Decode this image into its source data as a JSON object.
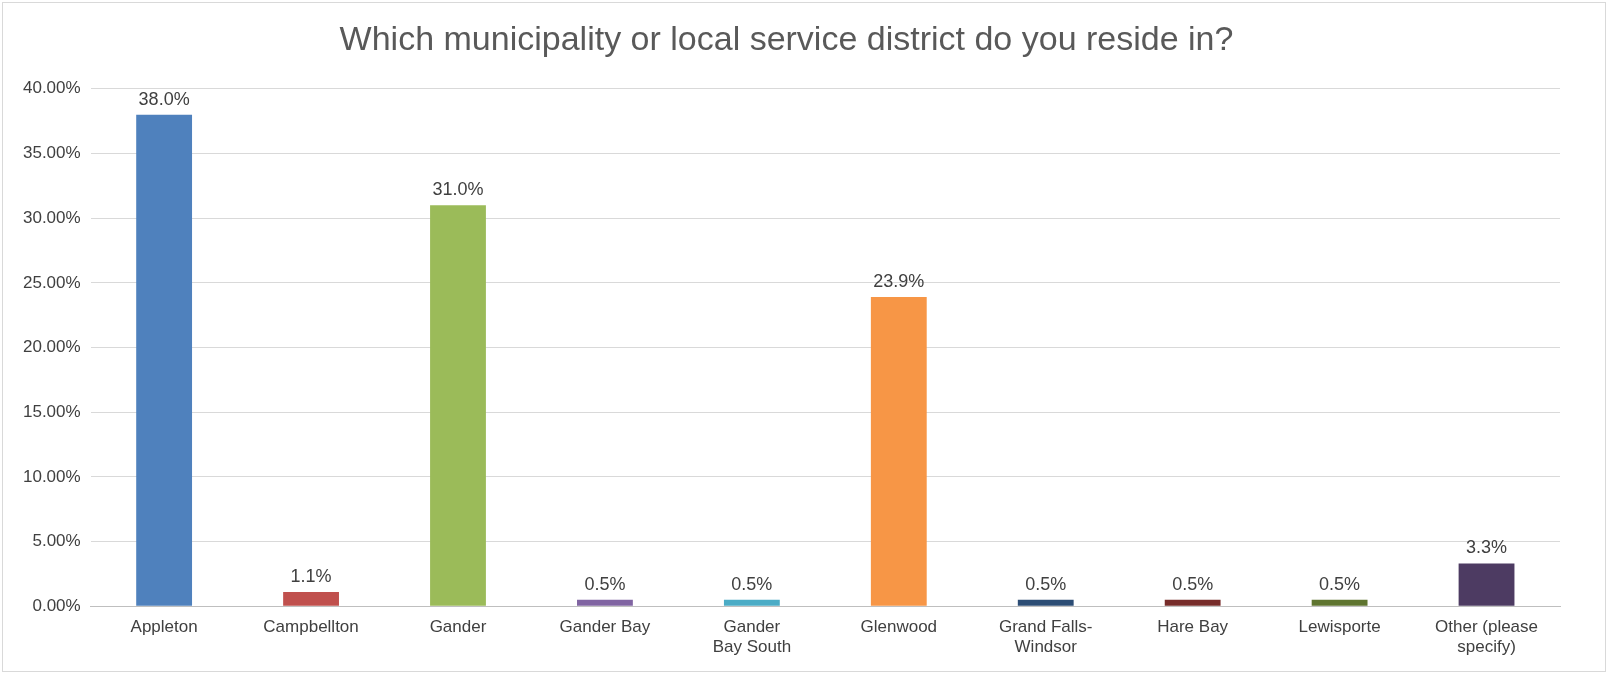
{
  "chart_data": {
    "type": "bar",
    "title": "Which municipality or local service district do you reside in?",
    "categories": [
      "Appleton",
      "Campbellton",
      "Gander",
      "Gander Bay",
      "Gander Bay South",
      "Glenwood",
      "Grand Falls-Windsor",
      "Hare Bay",
      "Lewisporte",
      "Other (please specify)"
    ],
    "values": [
      38.0,
      1.1,
      31.0,
      0.5,
      0.5,
      23.9,
      0.5,
      0.5,
      0.5,
      3.3
    ],
    "colors": [
      "#4f81bd",
      "#c0504d",
      "#9bbb59",
      "#8064a2",
      "#4bacc6",
      "#f79646",
      "#2c4d75",
      "#772c2a",
      "#5f7530",
      "#4d3b62"
    ],
    "value_labels": [
      "38.0%",
      "1.1%",
      "31.0%",
      "0.5%",
      "0.5%",
      "23.9%",
      "0.5%",
      "0.5%",
      "0.5%",
      "3.3%"
    ],
    "ylim": [
      0,
      40
    ],
    "yticks": [
      {
        "value": 0,
        "label": "0.00%"
      },
      {
        "value": 5,
        "label": "5.00%"
      },
      {
        "value": 10,
        "label": "10.00%"
      },
      {
        "value": 15,
        "label": "15.00%"
      },
      {
        "value": 20,
        "label": "20.00%"
      },
      {
        "value": 25,
        "label": "25.00%"
      },
      {
        "value": 30,
        "label": "30.00%"
      },
      {
        "value": 35,
        "label": "35.00%"
      },
      {
        "value": 40,
        "label": "40.00%"
      }
    ],
    "grid": "y",
    "legend": false
  }
}
